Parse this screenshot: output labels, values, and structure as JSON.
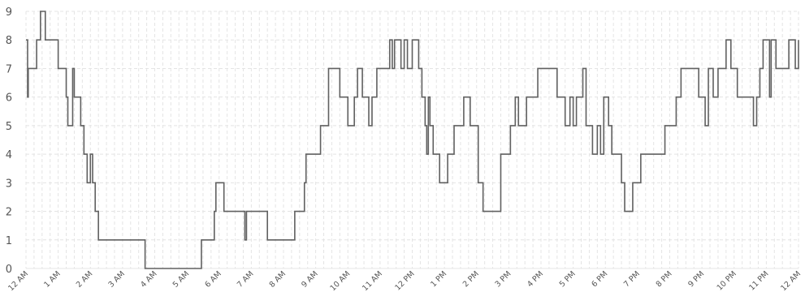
{
  "chart_data": {
    "type": "line",
    "step": true,
    "title": "",
    "xlabel": "",
    "ylabel": "",
    "ylim": [
      0,
      9
    ],
    "yticks": [
      "0",
      "1",
      "2",
      "3",
      "4",
      "5",
      "6",
      "7",
      "8",
      "9"
    ],
    "xticks": [
      "12 AM",
      "1 AM",
      "2 AM",
      "3 AM",
      "4 AM",
      "5 AM",
      "6 AM",
      "7 AM",
      "8 AM",
      "9 AM",
      "10 AM",
      "11 AM",
      "12 PM",
      "1 PM",
      "2 PM",
      "3 PM",
      "4 PM",
      "5 PM",
      "6 PM",
      "7 PM",
      "8 PM",
      "9 PM",
      "10 PM",
      "11 PM",
      "12 AM"
    ],
    "grid": true,
    "colors": {
      "line": "#606060",
      "grid": "#e4e4e4",
      "text": "#555555"
    },
    "series": [
      {
        "x_unit": "hours since midnight",
        "points": [
          [
            0.0,
            8
          ],
          [
            0.05,
            6
          ],
          [
            0.07,
            7
          ],
          [
            0.33,
            8
          ],
          [
            0.45,
            9
          ],
          [
            0.6,
            8
          ],
          [
            1.0,
            7
          ],
          [
            1.25,
            6
          ],
          [
            1.3,
            5
          ],
          [
            1.45,
            7
          ],
          [
            1.5,
            6
          ],
          [
            1.7,
            5
          ],
          [
            1.8,
            4
          ],
          [
            1.9,
            3
          ],
          [
            2.0,
            4
          ],
          [
            2.07,
            3
          ],
          [
            2.15,
            2
          ],
          [
            2.25,
            1
          ],
          [
            2.7,
            1
          ],
          [
            3.0,
            1
          ],
          [
            3.6,
            1
          ],
          [
            3.7,
            0
          ],
          [
            4.0,
            0
          ],
          [
            5.0,
            0
          ],
          [
            5.35,
            0
          ],
          [
            5.45,
            1
          ],
          [
            5.85,
            2
          ],
          [
            5.9,
            3
          ],
          [
            6.15,
            2
          ],
          [
            6.8,
            1
          ],
          [
            6.85,
            2
          ],
          [
            7.1,
            2
          ],
          [
            7.5,
            1
          ],
          [
            8.0,
            1
          ],
          [
            8.35,
            2
          ],
          [
            8.65,
            3
          ],
          [
            8.7,
            4
          ],
          [
            9.15,
            5
          ],
          [
            9.4,
            7
          ],
          [
            9.75,
            6
          ],
          [
            10.0,
            5
          ],
          [
            10.2,
            6
          ],
          [
            10.3,
            7
          ],
          [
            10.45,
            6
          ],
          [
            10.65,
            5
          ],
          [
            10.75,
            6
          ],
          [
            10.9,
            7
          ],
          [
            11.3,
            8
          ],
          [
            11.38,
            7
          ],
          [
            11.45,
            8
          ],
          [
            11.65,
            7
          ],
          [
            11.75,
            8
          ],
          [
            11.85,
            7
          ],
          [
            12.0,
            8
          ],
          [
            12.2,
            7
          ],
          [
            12.3,
            6
          ],
          [
            12.4,
            5
          ],
          [
            12.45,
            4
          ],
          [
            12.5,
            6
          ],
          [
            12.55,
            5
          ],
          [
            12.65,
            4
          ],
          [
            12.85,
            3
          ],
          [
            13.1,
            4
          ],
          [
            13.3,
            5
          ],
          [
            13.6,
            6
          ],
          [
            13.8,
            5
          ],
          [
            14.05,
            3
          ],
          [
            14.2,
            2
          ],
          [
            14.75,
            4
          ],
          [
            15.05,
            5
          ],
          [
            15.2,
            6
          ],
          [
            15.3,
            5
          ],
          [
            15.55,
            6
          ],
          [
            15.9,
            7
          ],
          [
            16.5,
            6
          ],
          [
            16.75,
            5
          ],
          [
            16.9,
            6
          ],
          [
            17.0,
            5
          ],
          [
            17.1,
            6
          ],
          [
            17.3,
            7
          ],
          [
            17.4,
            5
          ],
          [
            17.6,
            4
          ],
          [
            17.75,
            5
          ],
          [
            17.85,
            4
          ],
          [
            17.95,
            6
          ],
          [
            18.1,
            5
          ],
          [
            18.2,
            4
          ],
          [
            18.5,
            3
          ],
          [
            18.6,
            2
          ],
          [
            18.85,
            3
          ],
          [
            19.1,
            4
          ],
          [
            19.6,
            4
          ],
          [
            19.85,
            5
          ],
          [
            20.2,
            6
          ],
          [
            20.35,
            7
          ],
          [
            20.9,
            6
          ],
          [
            21.1,
            5
          ],
          [
            21.2,
            7
          ],
          [
            21.35,
            6
          ],
          [
            21.5,
            7
          ],
          [
            21.75,
            8
          ],
          [
            21.9,
            7
          ],
          [
            22.1,
            6
          ],
          [
            22.6,
            5
          ],
          [
            22.7,
            6
          ],
          [
            22.8,
            7
          ],
          [
            22.9,
            8
          ],
          [
            23.1,
            6
          ],
          [
            23.15,
            8
          ],
          [
            23.3,
            7
          ],
          [
            23.7,
            8
          ],
          [
            23.9,
            7
          ],
          [
            24.0,
            8
          ]
        ]
      }
    ]
  }
}
